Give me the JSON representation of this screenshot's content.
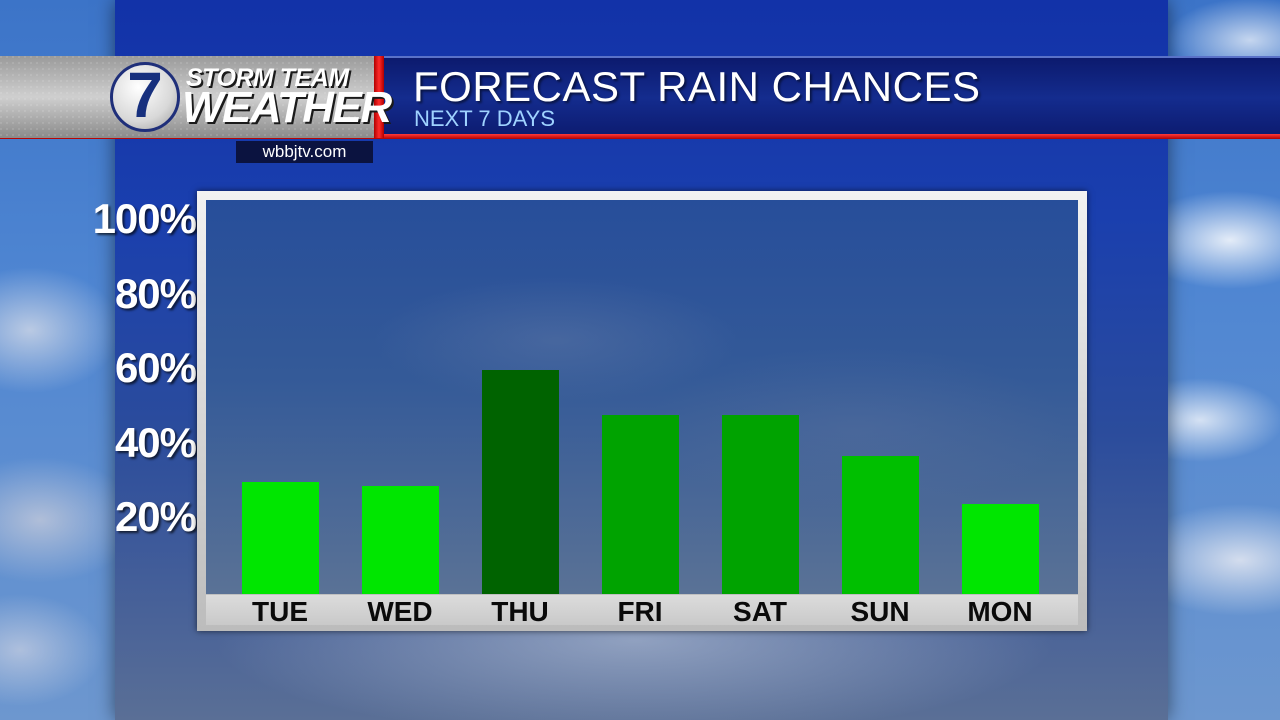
{
  "header": {
    "brand_top": "STORM TEAM",
    "brand_bottom": "WEATHER",
    "logo_number": "7",
    "url": "wbbjtv.com",
    "title": "FORECAST RAIN CHANCES",
    "subtitle": "NEXT 7 DAYS"
  },
  "colors": {
    "header_navy": "#142c8e",
    "accent_red": "#e01010",
    "subtitle_blue": "#9fd2ff"
  },
  "chart_data": {
    "type": "bar",
    "title": "FORECAST RAIN CHANCES",
    "subtitle": "NEXT 7 DAYS",
    "categories": [
      "TUE",
      "WED",
      "THU",
      "FRI",
      "SAT",
      "SUN",
      "MON"
    ],
    "values": [
      30,
      29,
      60,
      48,
      48,
      37,
      24
    ],
    "bar_colors": [
      "#00e600",
      "#00e600",
      "#006300",
      "#00a300",
      "#00a300",
      "#00bf00",
      "#00e600"
    ],
    "yticks": [
      20,
      40,
      60,
      80,
      100
    ],
    "ytick_labels": [
      "20%",
      "40%",
      "60%",
      "80%",
      "100%"
    ],
    "ylim": [
      0,
      100
    ],
    "unit": "%",
    "grid": false,
    "legend": "none"
  }
}
